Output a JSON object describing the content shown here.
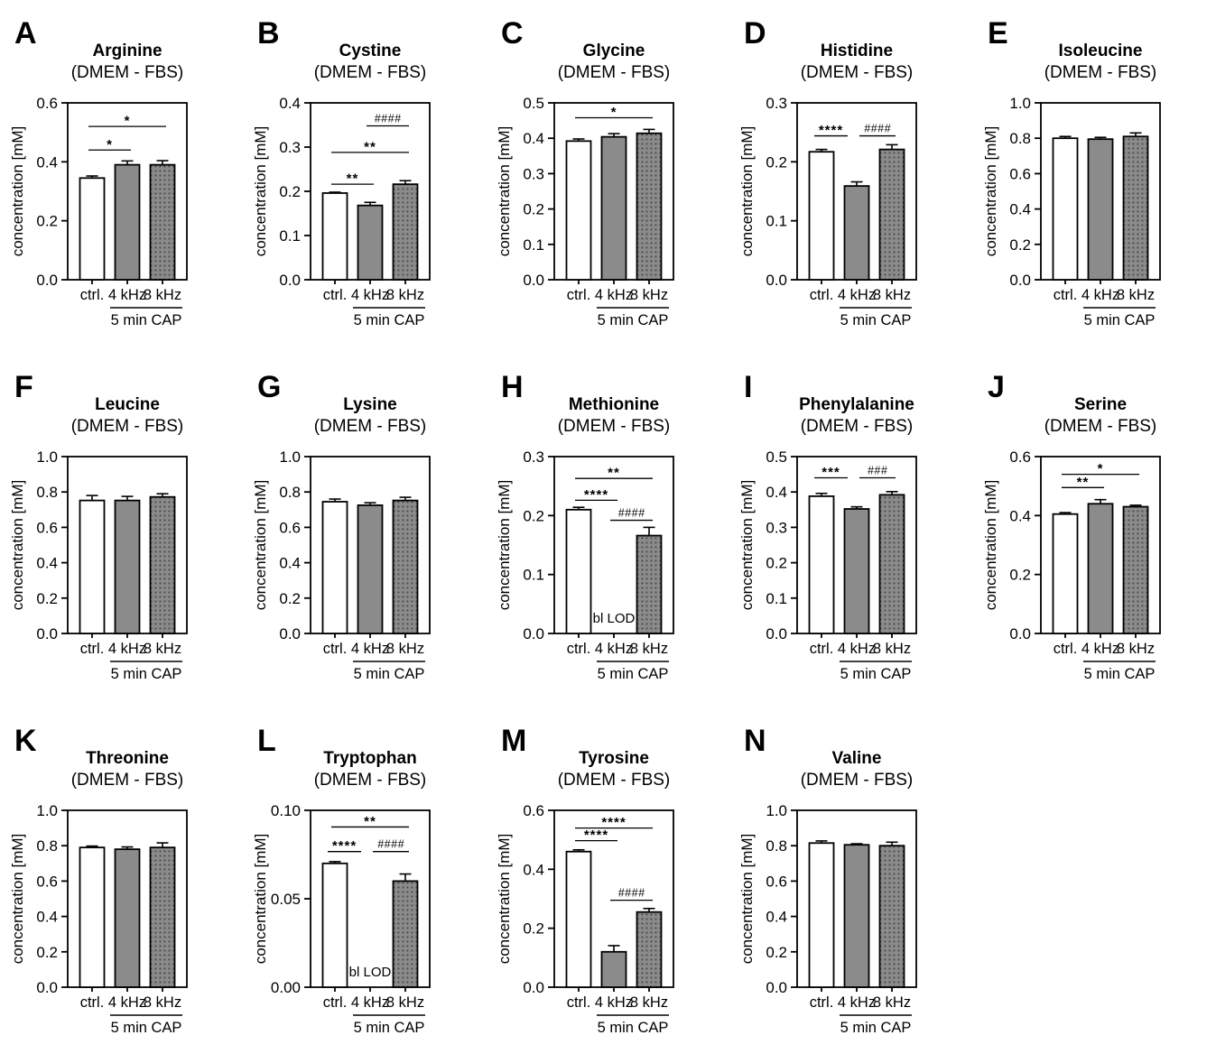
{
  "figure": {
    "ylabel": "concentration [mM]",
    "categories": [
      "ctrl.",
      "4 kHz",
      "8 kHz"
    ],
    "group_label": "5 min CAP",
    "below_lod_label": "bl LOD",
    "colors": {
      "axis": "#000000",
      "white_bar": "#ffffff",
      "gray_bar": "#8b8b8b",
      "dot": "#4a4a4a",
      "annotation_text": "#3a3a3a"
    }
  },
  "chart_data": [
    {
      "type": "bar",
      "letter": "A",
      "title": "Arginine",
      "subtitle": "(DMEM - FBS)",
      "ylabel": "concentration [mM]",
      "categories": [
        "ctrl.",
        "4 kHz",
        "8 kHz"
      ],
      "group_label": "5 min CAP",
      "ylim": [
        0,
        0.6
      ],
      "yticks": [
        "0.0",
        "0.2",
        "0.4",
        "0.6"
      ],
      "values": [
        0.345,
        0.39,
        0.39
      ],
      "errors": [
        0.007,
        0.013,
        0.014
      ],
      "significance": [
        {
          "from": 0,
          "to": 1,
          "y": 0.44,
          "label": "*"
        },
        {
          "from": 0,
          "to": 2,
          "y": 0.52,
          "label": "*"
        }
      ],
      "annotations": []
    },
    {
      "type": "bar",
      "letter": "B",
      "title": "Cystine",
      "subtitle": "(DMEM - FBS)",
      "ylabel": "concentration [mM]",
      "categories": [
        "ctrl.",
        "4 kHz",
        "8 kHz"
      ],
      "group_label": "5 min CAP",
      "ylim": [
        0,
        0.4
      ],
      "yticks": [
        "0.0",
        "0.1",
        "0.2",
        "0.3",
        "0.4"
      ],
      "values": [
        0.196,
        0.168,
        0.216
      ],
      "errors": [
        0.002,
        0.007,
        0.008
      ],
      "significance": [
        {
          "from": 0,
          "to": 1,
          "y": 0.216,
          "label": "**"
        },
        {
          "from": 0,
          "to": 2,
          "y": 0.288,
          "label": "**"
        },
        {
          "from": 1,
          "to": 2,
          "y": 0.348,
          "label": "####"
        }
      ],
      "annotations": []
    },
    {
      "type": "bar",
      "letter": "C",
      "title": "Glycine",
      "subtitle": "(DMEM - FBS)",
      "ylabel": "concentration [mM]",
      "categories": [
        "ctrl.",
        "4 kHz",
        "8 kHz"
      ],
      "group_label": "5 min CAP",
      "ylim": [
        0,
        0.5
      ],
      "yticks": [
        "0.0",
        "0.1",
        "0.2",
        "0.3",
        "0.4",
        "0.5"
      ],
      "values": [
        0.392,
        0.404,
        0.414
      ],
      "errors": [
        0.006,
        0.009,
        0.011
      ],
      "significance": [
        {
          "from": 0,
          "to": 2,
          "y": 0.458,
          "label": "*"
        }
      ],
      "annotations": []
    },
    {
      "type": "bar",
      "letter": "D",
      "title": "Histidine",
      "subtitle": "(DMEM - FBS)",
      "ylabel": "concentration [mM]",
      "categories": [
        "ctrl.",
        "4 kHz",
        "8 kHz"
      ],
      "group_label": "5 min CAP",
      "ylim": [
        0,
        0.3
      ],
      "yticks": [
        "0.0",
        "0.1",
        "0.2",
        "0.3"
      ],
      "values": [
        0.217,
        0.159,
        0.221
      ],
      "errors": [
        0.004,
        0.007,
        0.008
      ],
      "significance": [
        {
          "from": 0,
          "to": 1,
          "y": 0.244,
          "label": "****"
        },
        {
          "from": 1,
          "to": 2,
          "y": 0.244,
          "label": "####"
        }
      ],
      "annotations": []
    },
    {
      "type": "bar",
      "letter": "E",
      "title": "Isoleucine",
      "subtitle": "(DMEM - FBS)",
      "ylabel": "concentration [mM]",
      "categories": [
        "ctrl.",
        "4 kHz",
        "8 kHz"
      ],
      "group_label": "5 min CAP",
      "ylim": [
        0,
        1.0
      ],
      "yticks": [
        "0.0",
        "0.2",
        "0.4",
        "0.6",
        "0.8",
        "1.0"
      ],
      "values": [
        0.8,
        0.795,
        0.81
      ],
      "errors": [
        0.01,
        0.01,
        0.02
      ],
      "significance": [],
      "annotations": []
    },
    {
      "type": "bar",
      "letter": "F",
      "title": "Leucine",
      "subtitle": "(DMEM - FBS)",
      "ylabel": "concentration [mM]",
      "categories": [
        "ctrl.",
        "4 kHz",
        "8 kHz"
      ],
      "group_label": "5 min CAP",
      "ylim": [
        0,
        1.0
      ],
      "yticks": [
        "0.0",
        "0.2",
        "0.4",
        "0.6",
        "0.8",
        "1.0"
      ],
      "values": [
        0.752,
        0.752,
        0.772
      ],
      "errors": [
        0.028,
        0.023,
        0.018
      ],
      "significance": [],
      "annotations": []
    },
    {
      "type": "bar",
      "letter": "G",
      "title": "Lysine",
      "subtitle": "(DMEM - FBS)",
      "ylabel": "concentration [mM]",
      "categories": [
        "ctrl.",
        "4 kHz",
        "8 kHz"
      ],
      "group_label": "5 min CAP",
      "ylim": [
        0,
        1.0
      ],
      "yticks": [
        "0.0",
        "0.2",
        "0.4",
        "0.6",
        "0.8",
        "1.0"
      ],
      "values": [
        0.745,
        0.725,
        0.752
      ],
      "errors": [
        0.015,
        0.014,
        0.018
      ],
      "significance": [],
      "annotations": []
    },
    {
      "type": "bar",
      "letter": "H",
      "title": "Methionine",
      "subtitle": "(DMEM - FBS)",
      "ylabel": "concentration [mM]",
      "categories": [
        "ctrl.",
        "4 kHz",
        "8 kHz"
      ],
      "group_label": "5 min CAP",
      "ylim": [
        0,
        0.3
      ],
      "yticks": [
        "0.0",
        "0.1",
        "0.2",
        "0.3"
      ],
      "values": [
        0.21,
        null,
        0.166
      ],
      "errors": [
        0.004,
        null,
        0.014
      ],
      "significance": [
        {
          "from": 0,
          "to": 1,
          "y": 0.226,
          "label": "****"
        },
        {
          "from": 0,
          "to": 2,
          "y": 0.263,
          "label": "**"
        },
        {
          "from": 1,
          "to": 2,
          "y": 0.192,
          "label": "####"
        }
      ],
      "annotations": [
        {
          "text": "bl LOD",
          "category": 1
        }
      ]
    },
    {
      "type": "bar",
      "letter": "I",
      "title": "Phenylalanine",
      "subtitle": "(DMEM - FBS)",
      "ylabel": "concentration [mM]",
      "categories": [
        "ctrl.",
        "4 kHz",
        "8 kHz"
      ],
      "group_label": "5 min CAP",
      "ylim": [
        0,
        0.5
      ],
      "yticks": [
        "0.0",
        "0.1",
        "0.2",
        "0.3",
        "0.4",
        "0.5"
      ],
      "values": [
        0.388,
        0.352,
        0.392
      ],
      "errors": [
        0.008,
        0.006,
        0.009
      ],
      "significance": [
        {
          "from": 0,
          "to": 1,
          "y": 0.44,
          "label": "***"
        },
        {
          "from": 1,
          "to": 2,
          "y": 0.44,
          "label": "###"
        }
      ],
      "annotations": []
    },
    {
      "type": "bar",
      "letter": "J",
      "title": "Serine",
      "subtitle": "(DMEM - FBS)",
      "ylabel": "concentration [mM]",
      "categories": [
        "ctrl.",
        "4 kHz",
        "8 kHz"
      ],
      "group_label": "5 min CAP",
      "ylim": [
        0,
        0.6
      ],
      "yticks": [
        "0.0",
        "0.2",
        "0.4",
        "0.6"
      ],
      "values": [
        0.405,
        0.44,
        0.43
      ],
      "errors": [
        0.005,
        0.014,
        0.005
      ],
      "significance": [
        {
          "from": 0,
          "to": 1,
          "y": 0.495,
          "label": "**"
        },
        {
          "from": 0,
          "to": 2,
          "y": 0.54,
          "label": "*"
        }
      ],
      "annotations": []
    },
    {
      "type": "bar",
      "letter": "K",
      "title": "Threonine",
      "subtitle": "(DMEM - FBS)",
      "ylabel": "concentration [mM]",
      "categories": [
        "ctrl.",
        "4 kHz",
        "8 kHz"
      ],
      "group_label": "5 min CAP",
      "ylim": [
        0,
        1.0
      ],
      "yticks": [
        "0.0",
        "0.2",
        "0.4",
        "0.6",
        "0.8",
        "1.0"
      ],
      "values": [
        0.79,
        0.78,
        0.79
      ],
      "errors": [
        0.008,
        0.013,
        0.026
      ],
      "significance": [],
      "annotations": []
    },
    {
      "type": "bar",
      "letter": "L",
      "title": "Tryptophan",
      "subtitle": "(DMEM - FBS)",
      "ylabel": "concentration [mM]",
      "categories": [
        "ctrl.",
        "4 kHz",
        "8 kHz"
      ],
      "group_label": "5 min CAP",
      "ylim": [
        0,
        0.1
      ],
      "yticks": [
        "0.00",
        "0.05",
        "0.10"
      ],
      "values": [
        0.07,
        null,
        0.06
      ],
      "errors": [
        0.001,
        null,
        0.004
      ],
      "significance": [
        {
          "from": 0,
          "to": 1,
          "y": 0.0767,
          "label": "****"
        },
        {
          "from": 0,
          "to": 2,
          "y": 0.0906,
          "label": "**"
        },
        {
          "from": 1,
          "to": 2,
          "y": 0.0767,
          "label": "####"
        }
      ],
      "annotations": [
        {
          "text": "bl LOD",
          "category": 1
        }
      ]
    },
    {
      "type": "bar",
      "letter": "M",
      "title": "Tyrosine",
      "subtitle": "(DMEM - FBS)",
      "ylabel": "concentration [mM]",
      "categories": [
        "ctrl.",
        "4 kHz",
        "8 kHz"
      ],
      "group_label": "5 min CAP",
      "ylim": [
        0,
        0.6
      ],
      "yticks": [
        "0.0",
        "0.2",
        "0.4",
        "0.6"
      ],
      "values": [
        0.46,
        0.12,
        0.255
      ],
      "errors": [
        0.006,
        0.021,
        0.012
      ],
      "significance": [
        {
          "from": 0,
          "to": 1,
          "y": 0.497,
          "label": "****"
        },
        {
          "from": 0,
          "to": 2,
          "y": 0.54,
          "label": "****"
        },
        {
          "from": 1,
          "to": 2,
          "y": 0.295,
          "label": "####"
        }
      ],
      "annotations": []
    },
    {
      "type": "bar",
      "letter": "N",
      "title": "Valine",
      "subtitle": "(DMEM - FBS)",
      "ylabel": "concentration [mM]",
      "categories": [
        "ctrl.",
        "4 kHz",
        "8 kHz"
      ],
      "group_label": "5 min CAP",
      "ylim": [
        0,
        1.0
      ],
      "yticks": [
        "0.0",
        "0.2",
        "0.4",
        "0.6",
        "0.8",
        "1.0"
      ],
      "values": [
        0.815,
        0.805,
        0.8
      ],
      "errors": [
        0.012,
        0.006,
        0.02
      ],
      "significance": [],
      "annotations": []
    }
  ]
}
